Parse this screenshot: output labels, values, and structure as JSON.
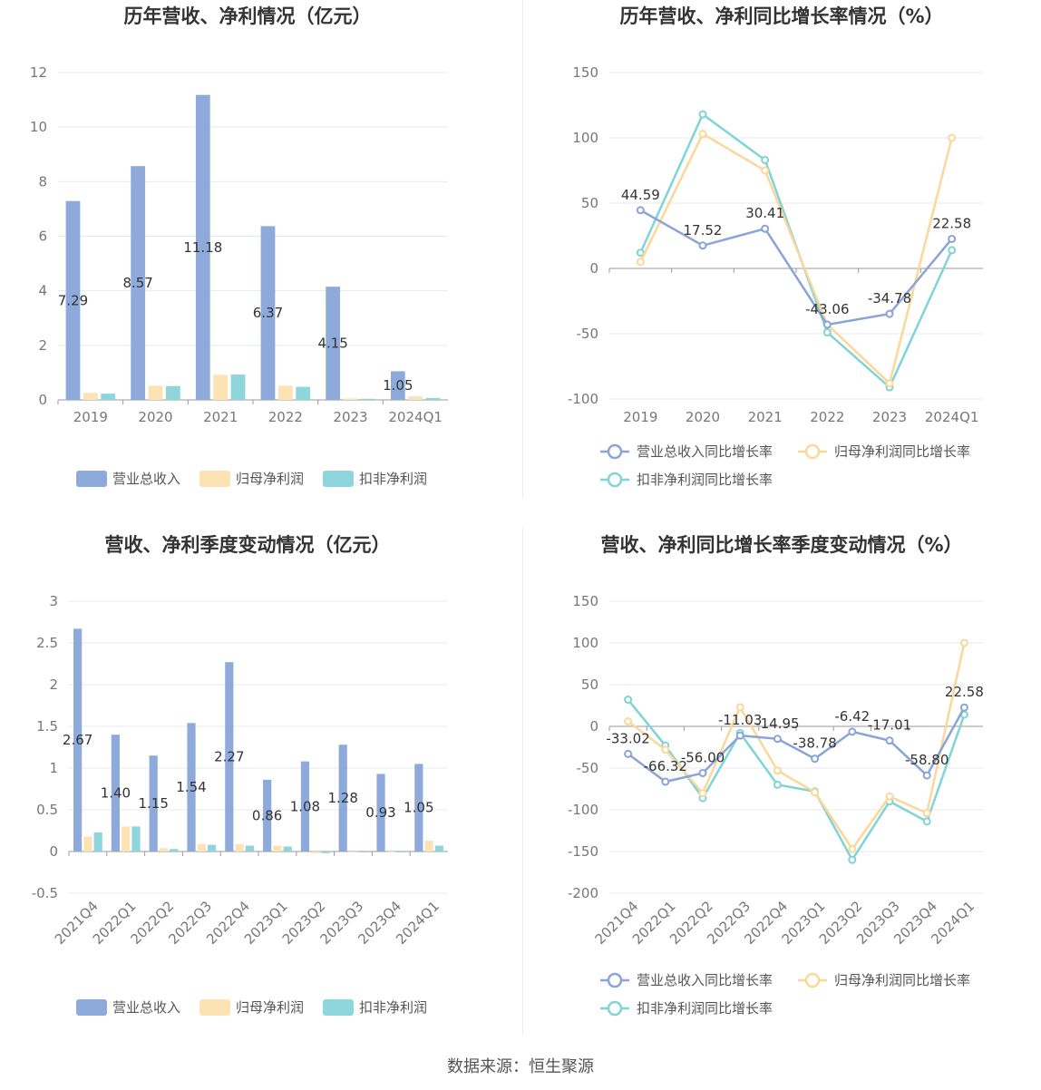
{
  "colors": {
    "revenue": "#8eaadb",
    "net_profit": "#fde2b3",
    "deducted": "#8fd6dc",
    "revenue_line": "#8aa4d8",
    "net_line": "#fcd79a",
    "deducted_line": "#7fd4d6"
  },
  "footer": "数据来源：恒生聚源",
  "chart_data": [
    {
      "type": "bar",
      "title": "历年营收、净利情况（亿元）",
      "categories": [
        "2019",
        "2020",
        "2021",
        "2022",
        "2023",
        "2024Q1"
      ],
      "ylim": [
        0,
        12
      ],
      "yticks": [
        0,
        2,
        4,
        6,
        8,
        10,
        12
      ],
      "series": [
        {
          "name": "营业总收入",
          "values": [
            7.29,
            8.57,
            11.18,
            6.37,
            4.15,
            1.05
          ],
          "labels": [
            "7.29",
            "8.57",
            "11.18",
            "6.37",
            "4.15",
            "1.05"
          ]
        },
        {
          "name": "归母净利润",
          "values": [
            0.26,
            0.52,
            0.92,
            0.52,
            0.05,
            0.13
          ]
        },
        {
          "name": "扣非净利润",
          "values": [
            0.23,
            0.51,
            0.93,
            0.48,
            0.04,
            0.07
          ]
        }
      ],
      "grid": true,
      "legend": "bottom"
    },
    {
      "type": "line",
      "title": "历年营收、净利同比增长率情况（%）",
      "categories": [
        "2019",
        "2020",
        "2021",
        "2022",
        "2023",
        "2024Q1"
      ],
      "ylim": [
        -100,
        150
      ],
      "yticks": [
        -100,
        -50,
        0,
        50,
        100,
        150
      ],
      "series": [
        {
          "name": "营业总收入同比增长率",
          "values": [
            44.59,
            17.52,
            30.41,
            -43.06,
            -34.78,
            22.58
          ],
          "labels": [
            "44.59",
            "17.52",
            "30.41",
            "-43.06",
            "-34.78",
            "22.58"
          ]
        },
        {
          "name": "归母净利润同比增长率",
          "values": [
            5,
            103,
            75,
            -43,
            -88,
            100
          ]
        },
        {
          "name": "扣非净利润同比增长率",
          "values": [
            12,
            118,
            83,
            -49,
            -91,
            14
          ]
        }
      ],
      "grid": true,
      "legend": "bottom"
    },
    {
      "type": "bar",
      "title": "营收、净利季度变动情况（亿元）",
      "categories": [
        "2021Q4",
        "2022Q1",
        "2022Q2",
        "2022Q3",
        "2022Q4",
        "2023Q1",
        "2023Q2",
        "2023Q3",
        "2023Q4",
        "2024Q1"
      ],
      "ylim": [
        -0.5,
        3
      ],
      "yticks": [
        -0.5,
        0,
        0.5,
        1,
        1.5,
        2,
        2.5,
        3
      ],
      "series": [
        {
          "name": "营业总收入",
          "values": [
            2.67,
            1.4,
            1.15,
            1.54,
            2.27,
            0.86,
            1.08,
            1.28,
            0.93,
            1.05
          ],
          "labels": [
            "2.67",
            "1.40",
            "1.15",
            "1.54",
            "2.27",
            "0.86",
            "1.08",
            "1.28",
            "0.93",
            "1.05"
          ]
        },
        {
          "name": "归母净利润",
          "values": [
            0.18,
            0.3,
            0.04,
            0.09,
            0.09,
            0.07,
            -0.02,
            -0.01,
            -0.01,
            0.13
          ]
        },
        {
          "name": "扣非净利润",
          "values": [
            0.23,
            0.3,
            0.03,
            0.08,
            0.07,
            0.06,
            -0.02,
            -0.01,
            -0.01,
            0.07
          ]
        }
      ],
      "grid": true,
      "legend": "bottom"
    },
    {
      "type": "line",
      "title": "营收、净利同比增长率季度变动情况（%）",
      "categories": [
        "2021Q4",
        "2022Q1",
        "2022Q2",
        "2022Q3",
        "2022Q4",
        "2023Q1",
        "2023Q2",
        "2023Q3",
        "2023Q4",
        "2024Q1"
      ],
      "ylim": [
        -200,
        150
      ],
      "yticks": [
        -200,
        -150,
        -100,
        -50,
        0,
        50,
        100,
        150
      ],
      "series": [
        {
          "name": "营业总收入同比增长率",
          "values": [
            -33.02,
            -66.32,
            -56.0,
            -11.03,
            -14.95,
            -38.78,
            -6.42,
            -17.01,
            -58.8,
            22.58
          ],
          "labels": [
            "-33.02",
            "-66.32",
            "-56.00",
            "-11.03",
            "-14.95",
            "-38.78",
            "-6.42",
            "-17.01",
            "-58.80",
            "22.58"
          ]
        },
        {
          "name": "归母净利润同比增长率",
          "values": [
            6,
            -28,
            -80,
            23,
            -53,
            -79,
            -147,
            -84,
            -104,
            100
          ]
        },
        {
          "name": "扣非净利润同比增长率",
          "values": [
            32,
            -23,
            -86,
            -8,
            -70,
            -78,
            -160,
            -90,
            -114,
            14
          ]
        }
      ],
      "grid": true,
      "legend": "bottom"
    }
  ]
}
